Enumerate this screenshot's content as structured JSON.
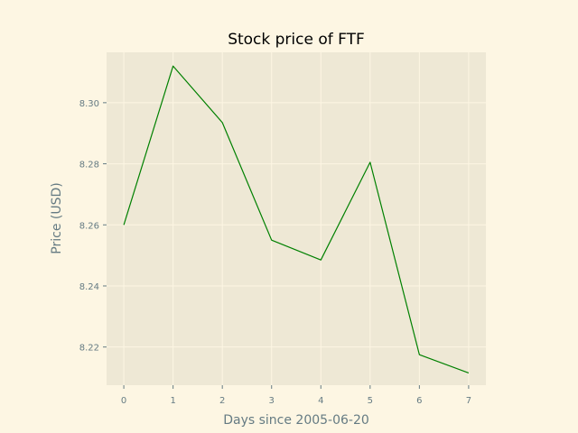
{
  "chart_data": {
    "type": "line",
    "title": "Stock price of FTF",
    "xlabel": "Days since 2005-06-20",
    "ylabel": "Price (USD)",
    "x": [
      0,
      1,
      2,
      3,
      4,
      5,
      6,
      7
    ],
    "series": [
      {
        "values": [
          8.26,
          8.312,
          8.2935,
          8.255,
          8.2485,
          8.2805,
          8.2175,
          8.2115
        ],
        "color": "#008000"
      }
    ],
    "xlim": [
      -0.35,
      7.35
    ],
    "ylim": [
      8.2075,
      8.3165
    ],
    "xticks": [
      "0",
      "1",
      "2",
      "3",
      "4",
      "5",
      "6",
      "7"
    ],
    "yticks": [
      "8.22",
      "8.24",
      "8.26",
      "8.28",
      "8.30"
    ],
    "grid": true,
    "plot_background": "#eee8d5",
    "figure_background": "#fdf6e3"
  }
}
